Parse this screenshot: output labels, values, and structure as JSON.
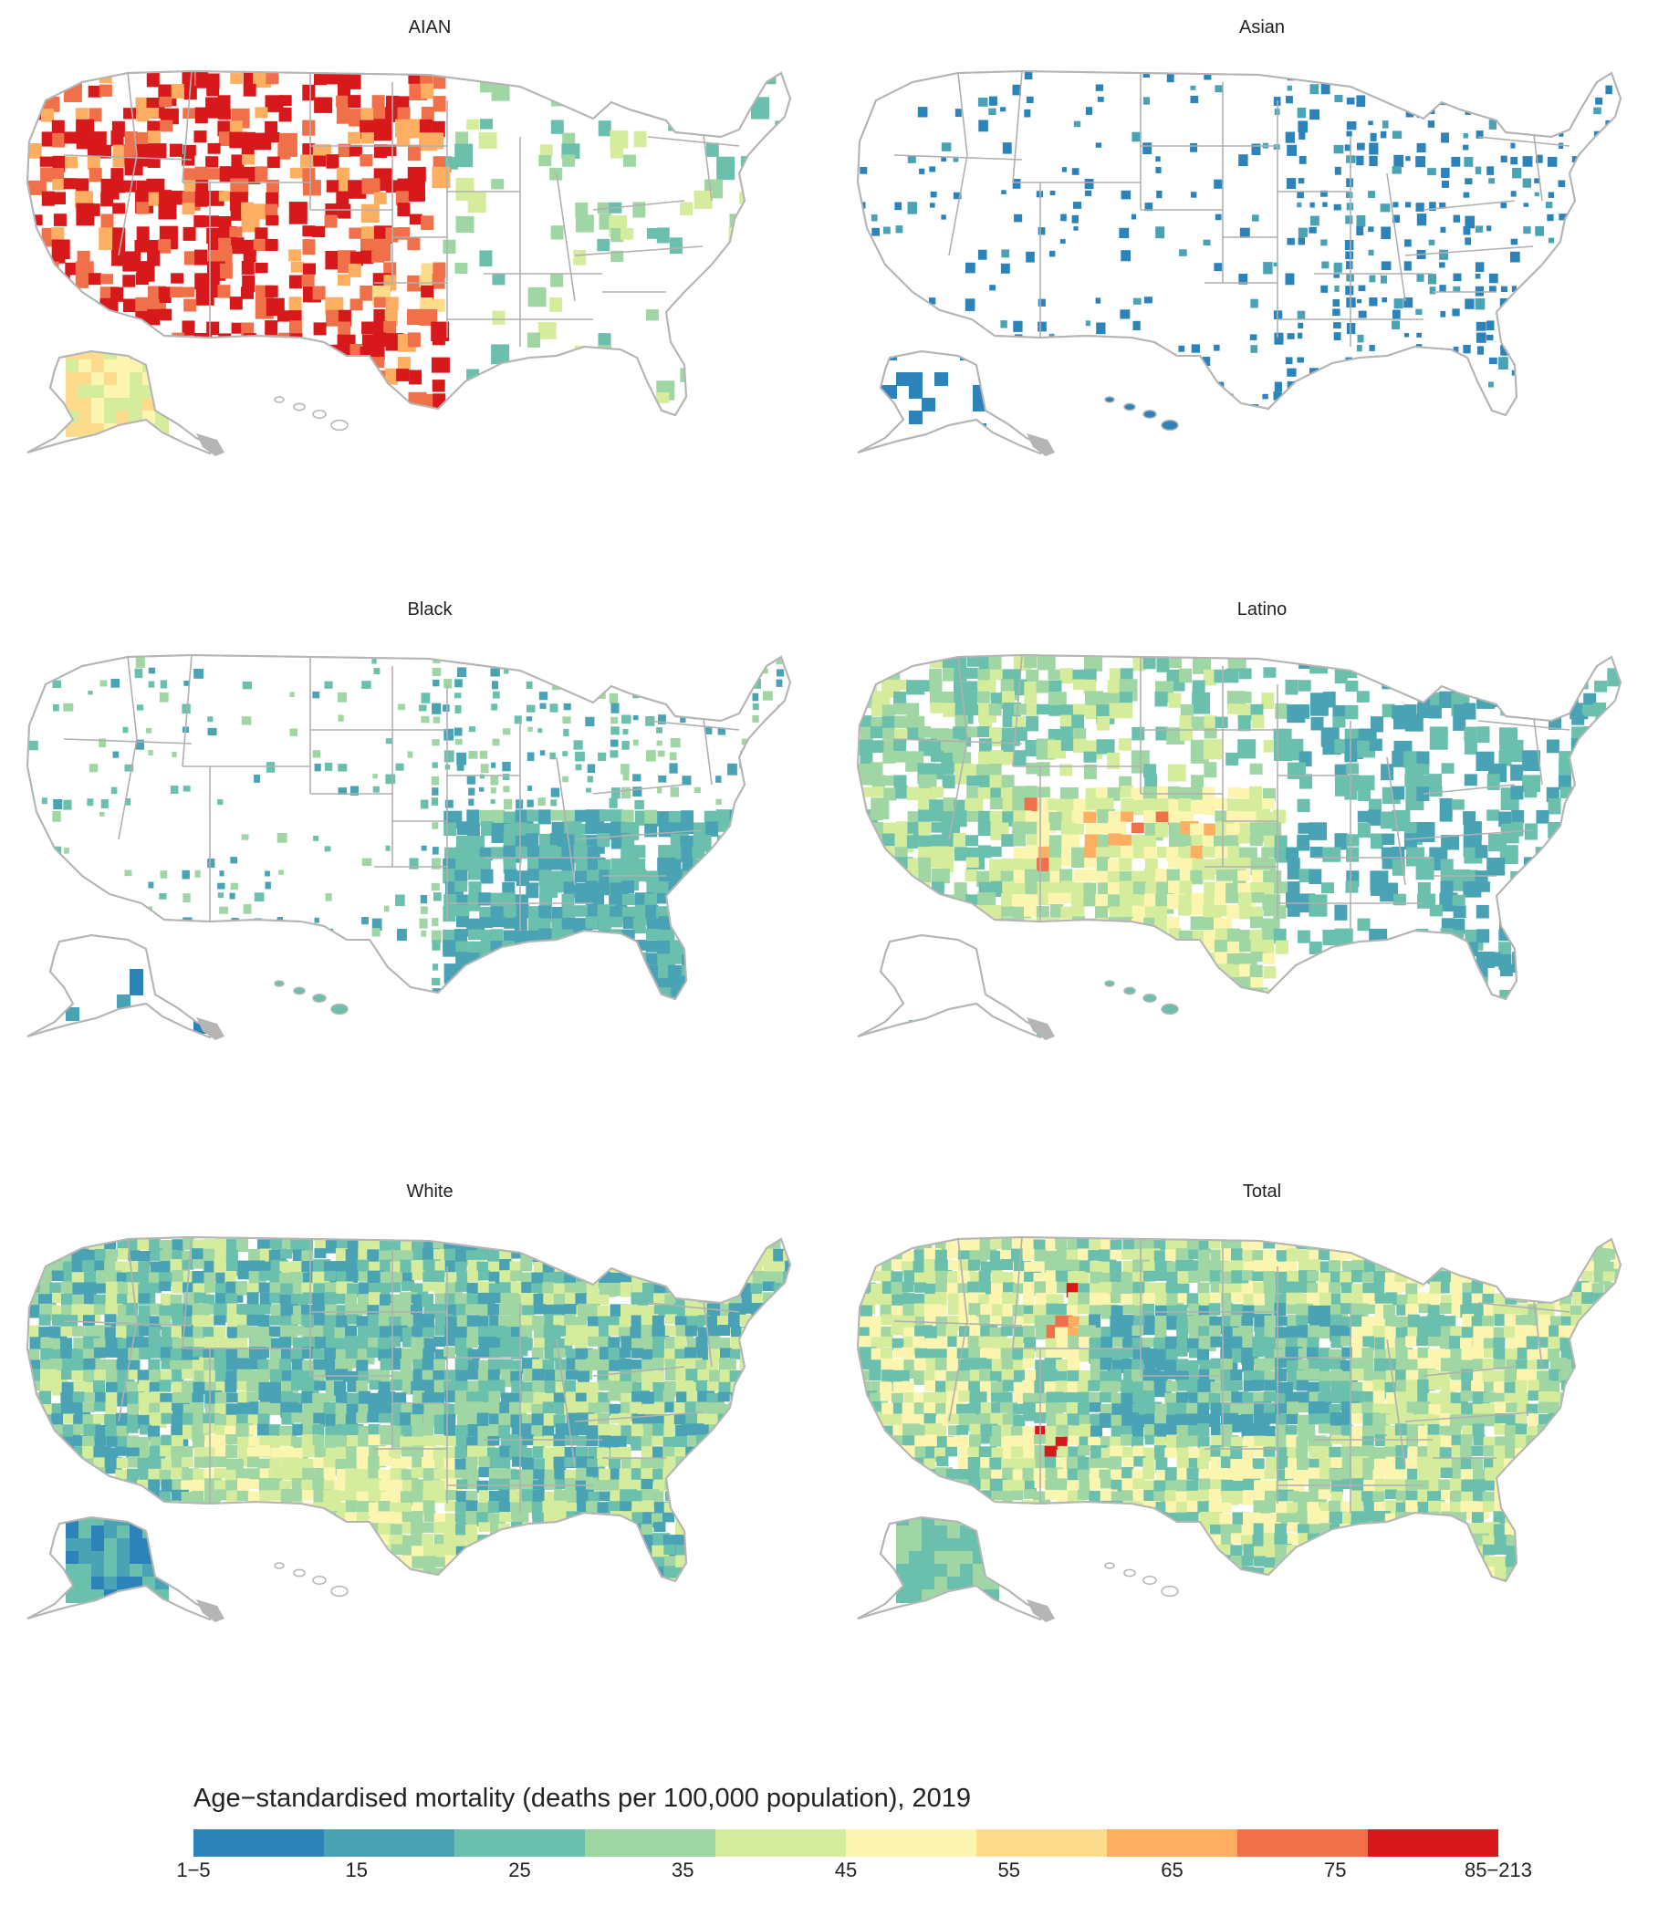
{
  "panels": [
    {
      "title": "AIAN",
      "pattern": "aian"
    },
    {
      "title": "Asian",
      "pattern": "asian"
    },
    {
      "title": "Black",
      "pattern": "black"
    },
    {
      "title": "Latino",
      "pattern": "latino"
    },
    {
      "title": "White",
      "pattern": "white"
    },
    {
      "title": "Total",
      "pattern": "total"
    }
  ],
  "legend": {
    "title": "Age−standardised mortality (deaths per 100,000 population), 2019",
    "ticks": [
      "1−5",
      "15",
      "25",
      "35",
      "45",
      "55",
      "65",
      "75",
      "85−213"
    ],
    "colors": [
      "#2b83ba",
      "#4aa3b4",
      "#6bbfad",
      "#a0d6a3",
      "#d4ec9c",
      "#fbf5b0",
      "#fddb8c",
      "#fdae61",
      "#f0704a",
      "#d7191c"
    ]
  },
  "colors": {
    "outline": "#b5b5b5",
    "no_data": "#ffffff"
  }
}
